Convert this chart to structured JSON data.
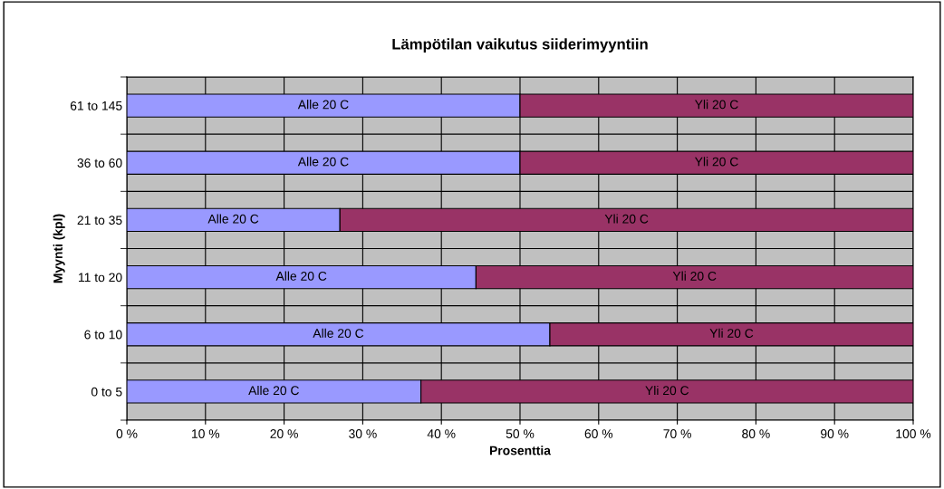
{
  "chart_data": {
    "type": "bar",
    "orientation": "horizontal",
    "stacked": true,
    "title": "Lämpötilan vaikutus siiderimyyntiin",
    "xlabel": "Prosenttia",
    "ylabel": "Myynti (kpl)",
    "categories": [
      "61 to 145",
      "36 to 60",
      "21 to 35",
      "11 to 20",
      "6 to 10",
      "0 to 5"
    ],
    "series": [
      {
        "name": "Alle 20 C",
        "color": "#9999ff",
        "values": [
          50,
          50,
          27.1,
          44.4,
          53.8,
          37.4
        ]
      },
      {
        "name": "Yli 20 C",
        "color": "#993366",
        "values": [
          50,
          50,
          72.9,
          55.6,
          46.2,
          62.6
        ]
      }
    ],
    "xlim": [
      0,
      100
    ],
    "xticks": [
      {
        "value": 0,
        "label": "0 %"
      },
      {
        "value": 10,
        "label": "10 %"
      },
      {
        "value": 20,
        "label": "20 %"
      },
      {
        "value": 30,
        "label": "30 %"
      },
      {
        "value": 40,
        "label": "40 %"
      },
      {
        "value": 50,
        "label": "50 %"
      },
      {
        "value": 60,
        "label": "60 %"
      },
      {
        "value": 70,
        "label": "70 %"
      },
      {
        "value": 80,
        "label": "80 %"
      },
      {
        "value": 90,
        "label": "90 %"
      },
      {
        "value": 100,
        "label": "100 %"
      }
    ],
    "grid": true,
    "legend": false
  }
}
